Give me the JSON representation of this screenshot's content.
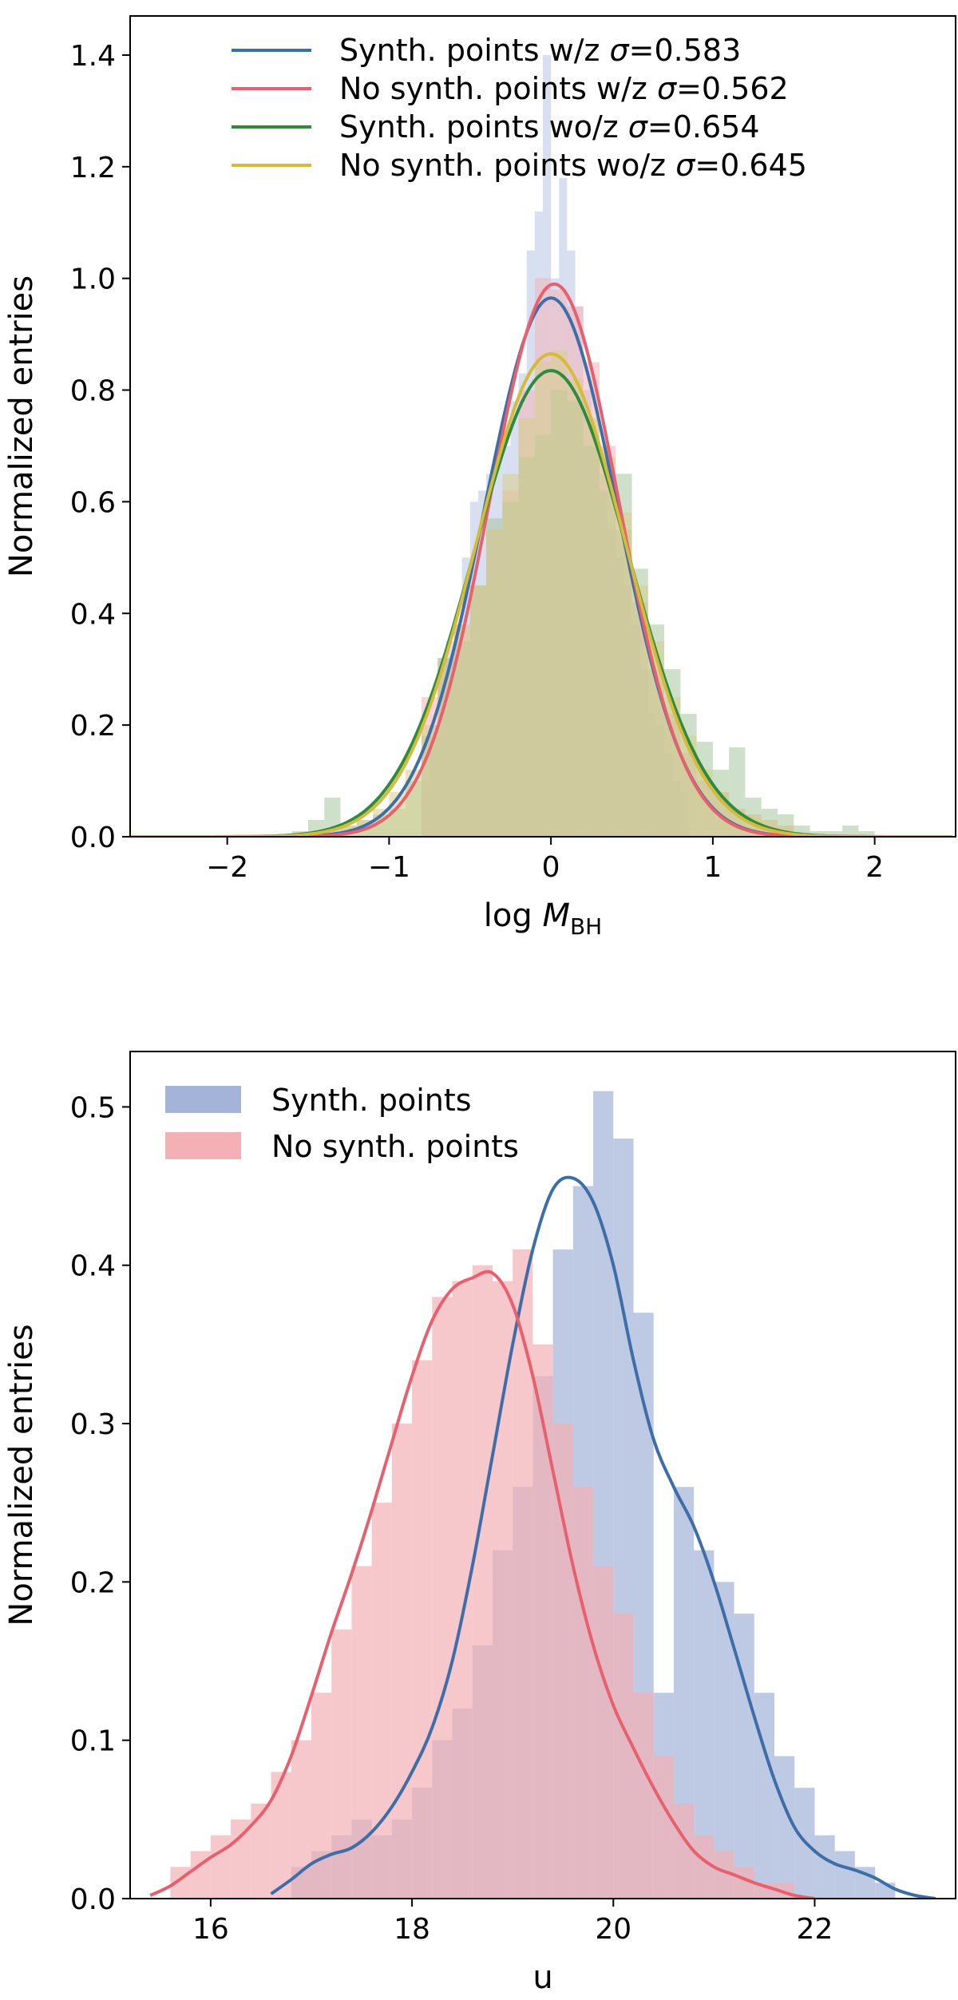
{
  "chart_data": [
    {
      "type": "histogram",
      "xlabel": "log M_BH",
      "ylabel": "Normalized entries",
      "xlim": [
        -2.6,
        2.5
      ],
      "ylim": [
        0,
        1.47
      ],
      "xticks": [
        -2,
        -1,
        0,
        1,
        2
      ],
      "yticks": [
        0.0,
        0.2,
        0.4,
        0.6,
        0.8,
        1.0,
        1.2,
        1.4
      ],
      "legend_position": "top-right",
      "grid": false,
      "series": [
        {
          "name": "Synth. points w/z σ=0.583",
          "color": "#3d6ea8",
          "histogram_color": "#b7c5e3",
          "bin_width": 0.05,
          "histogram": {
            "x": [
              -0.8,
              -0.75,
              -0.7,
              -0.65,
              -0.6,
              -0.55,
              -0.5,
              -0.45,
              -0.4,
              -0.35,
              -0.3,
              -0.25,
              -0.2,
              -0.15,
              -0.1,
              -0.05,
              0.0,
              0.05,
              0.1,
              0.15,
              0.2,
              0.25,
              0.3,
              0.35,
              0.4,
              0.45,
              0.5,
              0.55,
              0.6,
              0.65,
              0.7,
              0.75,
              0.8
            ],
            "y": [
              0.1,
              0.2,
              0.3,
              0.35,
              0.38,
              0.5,
              0.6,
              0.62,
              0.65,
              0.68,
              0.7,
              0.78,
              0.83,
              1.05,
              1.12,
              1.4,
              1.0,
              1.18,
              1.05,
              0.95,
              0.8,
              0.72,
              0.65,
              0.55,
              0.5,
              0.45,
              0.38,
              0.3,
              0.22,
              0.2,
              0.15,
              0.1,
              0.08
            ]
          },
          "curve": {
            "mu": 0.0,
            "sigma": 0.413,
            "peak": 0.965
          }
        },
        {
          "name": "No synth. points w/z σ=0.562",
          "color": "#e8606e",
          "histogram_color": "#f4b3b9",
          "bin_width": 0.1,
          "histogram": {
            "x": [
              -0.8,
              -0.7,
              -0.6,
              -0.5,
              -0.4,
              -0.3,
              -0.2,
              -0.1,
              0.0,
              0.1,
              0.2,
              0.3,
              0.4,
              0.5,
              0.6,
              0.7,
              0.8,
              0.9,
              1.0,
              1.1,
              1.2,
              1.3,
              1.4
            ],
            "y": [
              0.25,
              0.32,
              0.38,
              0.45,
              0.55,
              0.62,
              0.8,
              1.0,
              0.98,
              0.95,
              0.85,
              0.7,
              0.55,
              0.42,
              0.3,
              0.22,
              0.15,
              0.1,
              0.08,
              0.05,
              0.04,
              0.03,
              0.02
            ]
          },
          "curve": {
            "mu": 0.02,
            "sigma": 0.4,
            "peak": 0.99
          }
        },
        {
          "name": "Synth. points wo/z σ=0.654",
          "color": "#2e8b3e",
          "histogram_color": "#a6c49e",
          "bin_width": 0.1,
          "histogram": {
            "x": [
              -1.6,
              -1.5,
              -1.4,
              -1.3,
              -1.2,
              -1.1,
              -1.0,
              -0.9,
              -0.8,
              -0.7,
              -0.6,
              -0.5,
              -0.4,
              -0.3,
              -0.2,
              -0.1,
              0.0,
              0.1,
              0.2,
              0.3,
              0.4,
              0.5,
              0.6,
              0.7,
              0.8,
              0.9,
              1.0,
              1.1,
              1.2,
              1.3,
              1.4,
              1.5,
              1.6,
              1.7,
              1.8,
              1.9
            ],
            "y": [
              0.01,
              0.03,
              0.07,
              0.02,
              0.03,
              0.04,
              0.05,
              0.1,
              0.18,
              0.32,
              0.35,
              0.45,
              0.57,
              0.6,
              0.68,
              0.72,
              0.8,
              0.78,
              0.7,
              0.62,
              0.65,
              0.48,
              0.38,
              0.3,
              0.22,
              0.17,
              0.12,
              0.16,
              0.07,
              0.05,
              0.04,
              0.02,
              0.01,
              0.01,
              0.02,
              0.01
            ]
          },
          "curve": {
            "mu": 0.0,
            "sigma": 0.478,
            "peak": 0.835
          }
        },
        {
          "name": "No synth. points wo/z σ=0.645",
          "color": "#d4bb3b",
          "histogram_color": "#d7cd88",
          "bin_width": 0.1,
          "histogram": {
            "x": [
              -1.5,
              -1.4,
              -1.3,
              -1.2,
              -1.1,
              -1.0,
              -0.9,
              -0.8,
              -0.7,
              -0.6,
              -0.5,
              -0.4,
              -0.3,
              -0.2,
              -0.1,
              0.0,
              0.1,
              0.2,
              0.3,
              0.4,
              0.5,
              0.6,
              0.7,
              0.8,
              0.9,
              1.0,
              1.1,
              1.2,
              1.3,
              1.4
            ],
            "y": [
              0.01,
              0.01,
              0.02,
              0.03,
              0.05,
              0.08,
              0.12,
              0.2,
              0.3,
              0.38,
              0.45,
              0.55,
              0.65,
              0.75,
              0.85,
              0.87,
              0.82,
              0.75,
              0.68,
              0.58,
              0.45,
              0.35,
              0.25,
              0.18,
              0.12,
              0.08,
              0.05,
              0.04,
              0.03,
              0.02
            ]
          },
          "curve": {
            "mu": 0.0,
            "sigma": 0.462,
            "peak": 0.865
          }
        }
      ]
    },
    {
      "type": "histogram",
      "xlabel": "u",
      "ylabel": "Normalized entries",
      "xlim": [
        15.2,
        23.4
      ],
      "ylim": [
        0,
        0.535
      ],
      "xticks": [
        16,
        18,
        20,
        22
      ],
      "yticks": [
        0.0,
        0.1,
        0.2,
        0.3,
        0.4,
        0.5
      ],
      "legend_position": "top-left",
      "grid": false,
      "series": [
        {
          "name": "Synth. points",
          "color": "#3d6ea8",
          "histogram_color": "#a3b4d8",
          "bin_width": 0.2,
          "histogram": {
            "x": [
              16.8,
              17.0,
              17.2,
              17.4,
              17.6,
              17.8,
              18.0,
              18.2,
              18.4,
              18.6,
              18.8,
              19.0,
              19.2,
              19.4,
              19.6,
              19.8,
              20.0,
              20.2,
              20.4,
              20.6,
              20.8,
              21.0,
              21.2,
              21.4,
              21.6,
              21.8,
              22.0,
              22.2,
              22.4,
              22.6
            ],
            "y": [
              0.02,
              0.03,
              0.04,
              0.05,
              0.04,
              0.05,
              0.07,
              0.1,
              0.12,
              0.16,
              0.22,
              0.26,
              0.33,
              0.41,
              0.45,
              0.51,
              0.48,
              0.37,
              0.13,
              0.26,
              0.22,
              0.2,
              0.18,
              0.13,
              0.09,
              0.07,
              0.04,
              0.03,
              0.02,
              0.01
            ]
          },
          "curve": {
            "x": [
              16.6,
              16.8,
              17.0,
              17.2,
              17.4,
              17.6,
              17.8,
              18.0,
              18.2,
              18.4,
              18.6,
              18.8,
              19.0,
              19.2,
              19.4,
              19.6,
              19.8,
              20.0,
              20.2,
              20.4,
              20.6,
              20.8,
              21.0,
              21.2,
              21.4,
              21.6,
              21.8,
              22.0,
              22.2,
              22.4,
              22.6,
              22.8,
              23.0,
              23.2
            ],
            "y": [
              0.003,
              0.012,
              0.022,
              0.028,
              0.032,
              0.042,
              0.058,
              0.08,
              0.108,
              0.15,
              0.21,
              0.28,
              0.35,
              0.41,
              0.448,
              0.455,
              0.44,
              0.4,
              0.34,
              0.29,
              0.26,
              0.235,
              0.2,
              0.158,
              0.115,
              0.075,
              0.045,
              0.03,
              0.022,
              0.018,
              0.013,
              0.006,
              0.002,
              0.0
            ]
          }
        },
        {
          "name": "No synth. points",
          "color": "#e8606e",
          "histogram_color": "#f4b0b5",
          "bin_width": 0.2,
          "histogram": {
            "x": [
              15.6,
              15.8,
              16.0,
              16.2,
              16.4,
              16.6,
              16.8,
              17.0,
              17.2,
              17.4,
              17.6,
              17.8,
              18.0,
              18.2,
              18.4,
              18.6,
              18.8,
              19.0,
              19.2,
              19.4,
              19.6,
              19.8,
              20.0,
              20.2,
              20.4,
              20.6,
              20.8,
              21.0,
              21.2,
              21.4,
              21.6
            ],
            "y": [
              0.02,
              0.03,
              0.04,
              0.05,
              0.06,
              0.08,
              0.1,
              0.13,
              0.17,
              0.21,
              0.25,
              0.3,
              0.34,
              0.38,
              0.39,
              0.4,
              0.39,
              0.41,
              0.35,
              0.3,
              0.26,
              0.21,
              0.18,
              0.13,
              0.09,
              0.06,
              0.04,
              0.03,
              0.02,
              0.01,
              0.01
            ]
          },
          "curve": {
            "x": [
              15.4,
              15.6,
              15.8,
              16.0,
              16.2,
              16.4,
              16.6,
              16.8,
              17.0,
              17.2,
              17.4,
              17.6,
              17.8,
              18.0,
              18.2,
              18.4,
              18.6,
              18.8,
              19.0,
              19.2,
              19.4,
              19.6,
              19.8,
              20.0,
              20.2,
              20.4,
              20.6,
              20.8,
              21.0,
              21.2,
              21.4,
              21.6,
              21.8,
              22.0
            ],
            "y": [
              0.002,
              0.008,
              0.017,
              0.026,
              0.034,
              0.046,
              0.062,
              0.09,
              0.128,
              0.168,
              0.205,
              0.245,
              0.288,
              0.33,
              0.365,
              0.385,
              0.392,
              0.395,
              0.375,
              0.33,
              0.27,
              0.21,
              0.16,
              0.122,
              0.095,
              0.07,
              0.048,
              0.03,
              0.02,
              0.015,
              0.01,
              0.006,
              0.002,
              0.0
            ]
          }
        }
      ]
    }
  ]
}
